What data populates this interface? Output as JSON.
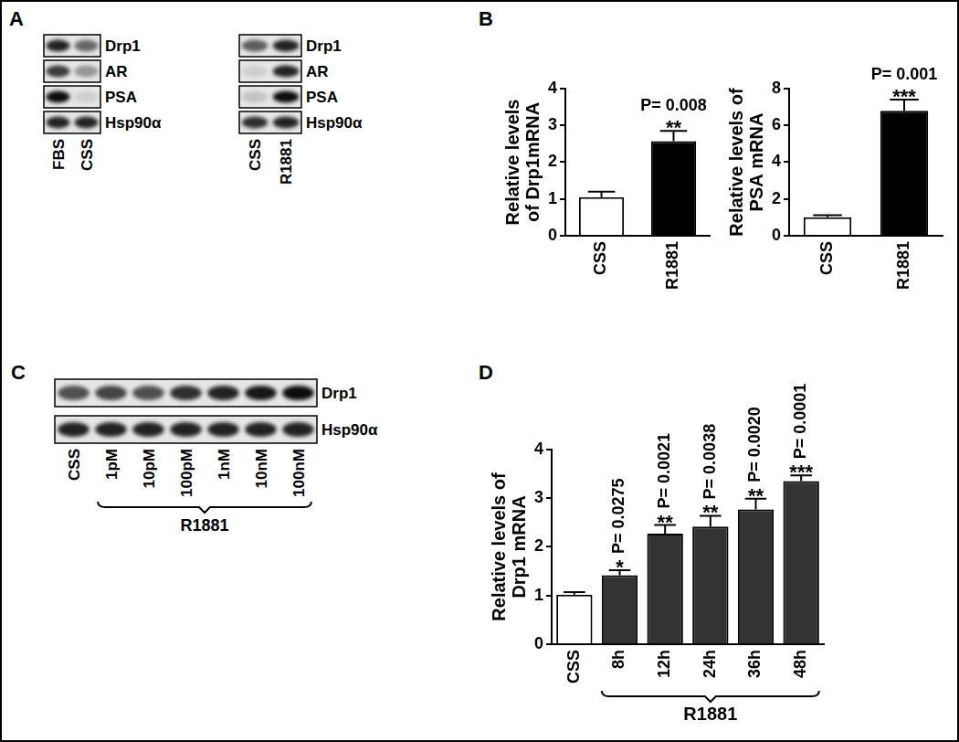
{
  "panel_labels": [
    "A",
    "B",
    "C",
    "D"
  ],
  "blots": [
    {
      "lanes": [
        "FBS",
        "CSS"
      ],
      "rows": [
        {
          "name": "Drp1",
          "intensities": [
            0.85,
            0.55
          ]
        },
        {
          "name": "AR",
          "intensities": [
            0.75,
            0.35
          ]
        },
        {
          "name": "PSA",
          "intensities": [
            0.95,
            0.1
          ]
        },
        {
          "name": "Hsp90α",
          "intensities": [
            0.85,
            0.85
          ]
        }
      ]
    },
    {
      "lanes": [
        "CSS",
        "R1881"
      ],
      "rows": [
        {
          "name": "Drp1",
          "intensities": [
            0.6,
            0.85
          ]
        },
        {
          "name": "AR",
          "intensities": [
            0.1,
            0.85
          ]
        },
        {
          "name": "PSA",
          "intensities": [
            0.15,
            0.95
          ]
        },
        {
          "name": "Hsp90α",
          "intensities": [
            0.8,
            0.85
          ]
        }
      ]
    },
    {
      "lanes": [
        "CSS",
        "1pM",
        "10pM",
        "100pM",
        "1nM",
        "10nM",
        "100nM"
      ],
      "rows": [
        {
          "name": "Drp1",
          "intensities": [
            0.65,
            0.7,
            0.65,
            0.8,
            0.85,
            0.9,
            0.95
          ]
        },
        {
          "name": "Hsp90α",
          "intensities": [
            0.85,
            0.85,
            0.85,
            0.85,
            0.85,
            0.85,
            0.85
          ]
        }
      ],
      "group_label": {
        "text": "R1881",
        "lanes": [
          "1pM",
          "100nM"
        ]
      }
    }
  ],
  "chart_data": [
    {
      "type": "bar",
      "y_label": [
        "Relative levels",
        "of Drp1mRNA"
      ],
      "categories": [
        "CSS",
        "R1881"
      ],
      "values": [
        1.05,
        2.57
      ],
      "errors": [
        0.15,
        0.28
      ],
      "colors": [
        "#ffffff",
        "#000000"
      ],
      "ylim": [
        0,
        4
      ],
      "yticks": [
        0,
        1,
        2,
        3,
        4
      ],
      "grid": false,
      "stars": [
        null,
        "**"
      ],
      "p_labels": [
        null,
        "P= 0.008"
      ]
    },
    {
      "type": "bar",
      "y_label": [
        "Relative levels of",
        "PSA mRNA"
      ],
      "categories": [
        "CSS",
        "R1881"
      ],
      "values": [
        1.0,
        6.8
      ],
      "errors": [
        0.12,
        0.6
      ],
      "colors": [
        "#ffffff",
        "#000000"
      ],
      "ylim": [
        0,
        8
      ],
      "yticks": [
        0,
        2,
        4,
        6,
        8
      ],
      "grid": false,
      "stars": [
        null,
        "***"
      ],
      "p_labels": [
        null,
        "P= 0.001"
      ]
    },
    {
      "type": "bar",
      "y_label": [
        "Relative levels of",
        "Drp1 mRNA"
      ],
      "categories": [
        "CSS",
        "8h",
        "12h",
        "24h",
        "36h",
        "48h"
      ],
      "values": [
        1.02,
        1.42,
        2.27,
        2.42,
        2.77,
        3.35
      ],
      "errors": [
        0.05,
        0.1,
        0.18,
        0.22,
        0.22,
        0.12
      ],
      "colors": [
        "#ffffff",
        "#333333",
        "#333333",
        "#333333",
        "#333333",
        "#333333"
      ],
      "ylim": [
        0,
        4
      ],
      "yticks": [
        0,
        1,
        2,
        3,
        4
      ],
      "grid": false,
      "stars": [
        null,
        "*",
        "**",
        "**",
        "**",
        "***"
      ],
      "p_labels": [
        null,
        "P= 0.0275",
        "P= 0.0021",
        "P= 0.0038",
        "P= 0.0020",
        "P= 0.0001"
      ],
      "group_label": {
        "text": "R1881",
        "categories": [
          "8h",
          "48h"
        ]
      }
    }
  ]
}
